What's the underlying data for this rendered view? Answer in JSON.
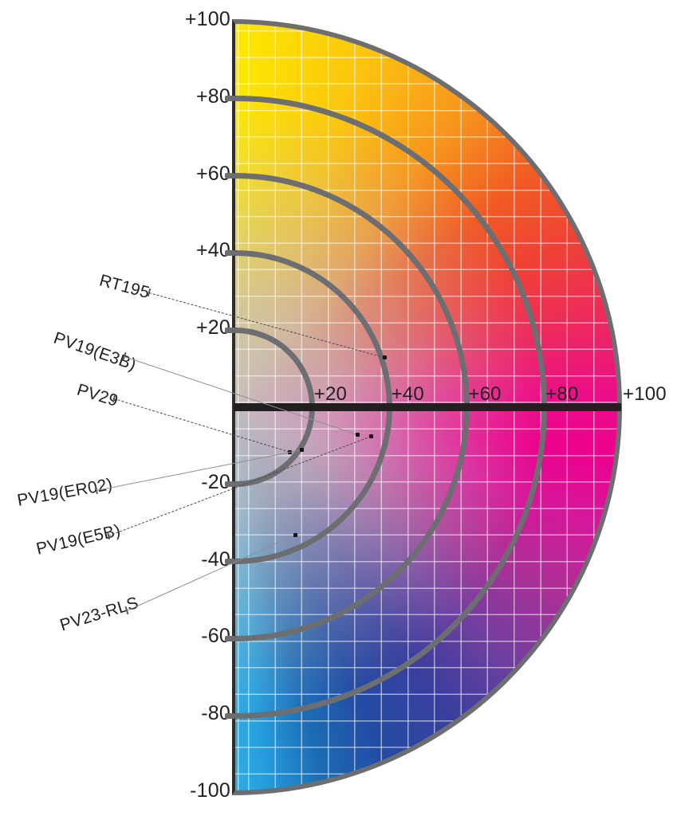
{
  "chart_data": {
    "type": "scatter",
    "title": "",
    "description": "Right half of an a*/b* colour-space hue wheel (yellow at top, magenta at right, blue at bottom) with concentric chroma rings and pigment colour positions marked by dots with leader lines.",
    "x_ticks": [
      "+20",
      "+40",
      "+60",
      "+80",
      "+100"
    ],
    "y_ticks": [
      "+100",
      "+80",
      "+60",
      "+40",
      "+20",
      "-20",
      "-40",
      "-60",
      "-80",
      "-100"
    ],
    "xlim": [
      0,
      100
    ],
    "ylim": [
      -100,
      100
    ],
    "rings": [
      20,
      40,
      60,
      80,
      100
    ],
    "grid": "on",
    "points": [
      {
        "label": "RT195",
        "a": 39,
        "b": 13,
        "leader": "dashed"
      },
      {
        "label": "PV19(E3B)",
        "a": 32,
        "b": -7,
        "leader": "solid"
      },
      {
        "label": "PV29",
        "a": 14.5,
        "b": -11.5,
        "leader": "dashed"
      },
      {
        "label": "PV19(ER02)",
        "a": 17.5,
        "b": -11,
        "leader": "solid"
      },
      {
        "label": "PV19(E5B)",
        "a": 35.5,
        "b": -7.5,
        "leader": "dashed"
      },
      {
        "label": "PV23-RLS",
        "a": 16,
        "b": -33,
        "leader": "solid"
      }
    ],
    "colors": {
      "ring_stroke": "#6d6e71",
      "flat_edge": "#2e2d2c",
      "axis_line": "#231f20",
      "tick_text": "#231f20",
      "grid_line": "rgba(255,255,255,0.55)",
      "center_neutral": "#c7bfc2",
      "wheel_stops": [
        [
          0,
          "#fde800"
        ],
        [
          20,
          "#fcc50e"
        ],
        [
          38,
          "#f7941d"
        ],
        [
          52,
          "#f15a24"
        ],
        [
          64,
          "#ef4136"
        ],
        [
          76,
          "#ee2a5c"
        ],
        [
          88,
          "#ec0e88"
        ],
        [
          97,
          "#ec008c"
        ],
        [
          107,
          "#d8169a"
        ],
        [
          120,
          "#ab3096"
        ],
        [
          133,
          "#6f3f9f"
        ],
        [
          145,
          "#3a3e9d"
        ],
        [
          157,
          "#234ba3"
        ],
        [
          167,
          "#1c6cb5"
        ],
        [
          176,
          "#27a0dd"
        ],
        [
          180,
          "#2dabe3"
        ]
      ]
    }
  }
}
